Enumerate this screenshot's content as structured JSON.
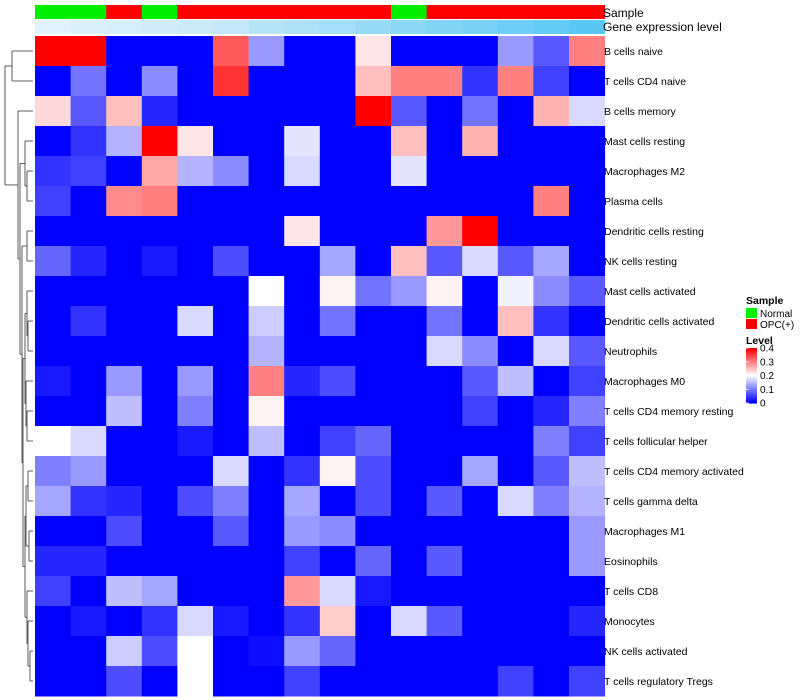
{
  "chart_data": {
    "type": "heatmap",
    "annotation_labels": {
      "sample": "Sample",
      "expression": "Gene expression level"
    },
    "sample_groups": [
      "Normal",
      "Normal",
      "OPC(+)",
      "Normal",
      "OPC(+)",
      "OPC(+)",
      "OPC(+)",
      "OPC(+)",
      "OPC(+)",
      "OPC(+)",
      "Normal",
      "OPC(+)",
      "OPC(+)",
      "OPC(+)",
      "OPC(+)",
      "OPC(+)"
    ],
    "expression_levels": [
      0.05,
      0.08,
      0.1,
      0.12,
      0.15,
      0.2,
      0.25,
      0.3,
      0.35,
      0.4,
      0.45,
      0.5,
      0.55,
      0.6,
      0.65,
      0.7
    ],
    "rows": [
      "B cells naive",
      "T cells CD4 naive",
      "B cells memory",
      "Mast cells resting",
      "Macrophages M2",
      "Plasma cells",
      "Dendritic cells resting",
      "NK cells resting",
      "Mast cells activated",
      "Dendritic cells activated",
      "Neutrophils",
      "Macrophages M0",
      "T cells CD4 memory resting",
      "T cells follicular helper",
      "T cells CD4 memory activated",
      "T cells gamma delta",
      "Macrophages M1",
      "Eosinophils",
      "T cells CD8",
      "Monocytes",
      "NK cells activated",
      "T cells regulatory  Tregs"
    ],
    "values": [
      [
        0.4,
        0.4,
        0.0,
        0.0,
        0.0,
        0.33,
        0.12,
        0.0,
        0.0,
        0.22,
        0.0,
        0.0,
        0.0,
        0.12,
        0.07,
        0.3
      ],
      [
        0.0,
        0.09,
        0.0,
        0.11,
        0.0,
        0.36,
        0.0,
        0.0,
        0.0,
        0.25,
        0.3,
        0.3,
        0.04,
        0.3,
        0.05,
        0.0
      ],
      [
        0.23,
        0.07,
        0.25,
        0.03,
        0.0,
        0.0,
        0.0,
        0.0,
        0.0,
        0.4,
        0.07,
        0.0,
        0.09,
        0.0,
        0.26,
        0.17
      ],
      [
        0.0,
        0.04,
        0.14,
        0.4,
        0.22,
        0.0,
        0.0,
        0.18,
        0.0,
        0.0,
        0.25,
        0.0,
        0.26,
        0.0,
        0.0,
        0.0
      ],
      [
        0.04,
        0.05,
        0.0,
        0.27,
        0.14,
        0.11,
        0.0,
        0.17,
        0.0,
        0.0,
        0.18,
        0.0,
        0.0,
        0.0,
        0.0,
        0.0
      ],
      [
        0.05,
        0.0,
        0.29,
        0.3,
        0.0,
        0.0,
        0.0,
        0.0,
        0.0,
        0.0,
        0.0,
        0.0,
        0.0,
        0.0,
        0.3,
        0.0
      ],
      [
        0.0,
        0.0,
        0.0,
        0.0,
        0.0,
        0.0,
        0.0,
        0.22,
        0.0,
        0.0,
        0.0,
        0.28,
        0.4,
        0.0,
        0.0,
        0.0
      ],
      [
        0.08,
        0.03,
        0.0,
        0.02,
        0.0,
        0.06,
        0.0,
        0.0,
        0.13,
        0.0,
        0.25,
        0.07,
        0.17,
        0.07,
        0.13,
        0.0
      ],
      [
        0.0,
        0.0,
        0.0,
        0.0,
        0.0,
        0.0,
        0.2,
        0.0,
        0.21,
        0.09,
        0.12,
        0.21,
        0.0,
        0.19,
        0.11,
        0.07
      ],
      [
        0.0,
        0.04,
        0.0,
        0.0,
        0.17,
        0.0,
        0.16,
        0.0,
        0.09,
        0.0,
        0.0,
        0.09,
        0.0,
        0.25,
        0.04,
        0.0
      ],
      [
        0.0,
        0.0,
        0.0,
        0.0,
        0.0,
        0.0,
        0.14,
        0.0,
        0.0,
        0.0,
        0.0,
        0.17,
        0.11,
        0.0,
        0.17,
        0.07
      ],
      [
        0.02,
        0.0,
        0.12,
        0.0,
        0.12,
        0.0,
        0.3,
        0.03,
        0.06,
        0.0,
        0.0,
        0.0,
        0.07,
        0.15,
        0.0,
        0.05
      ],
      [
        0.0,
        0.0,
        0.15,
        0.0,
        0.1,
        0.0,
        0.21,
        0.0,
        0.0,
        0.0,
        0.0,
        0.0,
        0.05,
        0.0,
        0.03,
        0.1
      ],
      [
        0.2,
        0.17,
        0.0,
        0.0,
        0.02,
        0.0,
        0.15,
        0.0,
        0.05,
        0.08,
        0.0,
        0.0,
        0.0,
        0.0,
        0.1,
        0.05
      ],
      [
        0.1,
        0.12,
        0.0,
        0.0,
        0.0,
        0.17,
        0.0,
        0.04,
        0.21,
        0.06,
        0.0,
        0.0,
        0.13,
        0.0,
        0.07,
        0.15
      ],
      [
        0.13,
        0.04,
        0.03,
        0.0,
        0.06,
        0.1,
        0.0,
        0.13,
        0.0,
        0.06,
        0.0,
        0.07,
        0.0,
        0.17,
        0.1,
        0.14
      ],
      [
        0.0,
        0.0,
        0.06,
        0.0,
        0.0,
        0.07,
        0.0,
        0.12,
        0.11,
        0.0,
        0.0,
        0.0,
        0.0,
        0.0,
        0.0,
        0.12
      ],
      [
        0.03,
        0.03,
        0.0,
        0.0,
        0.0,
        0.0,
        0.0,
        0.05,
        0.0,
        0.08,
        0.0,
        0.07,
        0.0,
        0.0,
        0.0,
        0.12
      ],
      [
        0.05,
        0.0,
        0.15,
        0.13,
        0.0,
        0.0,
        0.0,
        0.28,
        0.17,
        0.02,
        0.0,
        0.0,
        0.0,
        0.0,
        0.0,
        0.0
      ],
      [
        0.0,
        0.02,
        0.0,
        0.04,
        0.17,
        0.02,
        0.0,
        0.04,
        0.24,
        0.0,
        0.17,
        0.07,
        0.0,
        0.0,
        0.0,
        0.03
      ],
      [
        0.0,
        0.0,
        0.16,
        0.06,
        0.2,
        0.0,
        0.01,
        0.12,
        0.08,
        0.0,
        0.0,
        0.0,
        0.0,
        0.0,
        0.0,
        0.0
      ],
      [
        0.0,
        0.0,
        0.06,
        0.0,
        0.2,
        0.0,
        0.0,
        0.05,
        0.0,
        0.0,
        0.0,
        0.0,
        0.0,
        0.05,
        0.0,
        0.05
      ]
    ],
    "legend": {
      "sample_title": "Sample",
      "sample_items": [
        {
          "name": "Normal",
          "color": "#00ee00"
        },
        {
          "name": "OPC(+)",
          "color": "#ff0000"
        }
      ],
      "level_title": "Level",
      "level_ticks": [
        0.4,
        0.3,
        0.2,
        0.1,
        0
      ],
      "level_tick_labels": [
        "0.4",
        "0.3",
        "0.2",
        "0.1",
        "0"
      ]
    },
    "color_scale": {
      "low": "#0000ff",
      "mid": "#ffffff",
      "high": "#ff0000",
      "min": 0,
      "max": 0.4
    }
  }
}
